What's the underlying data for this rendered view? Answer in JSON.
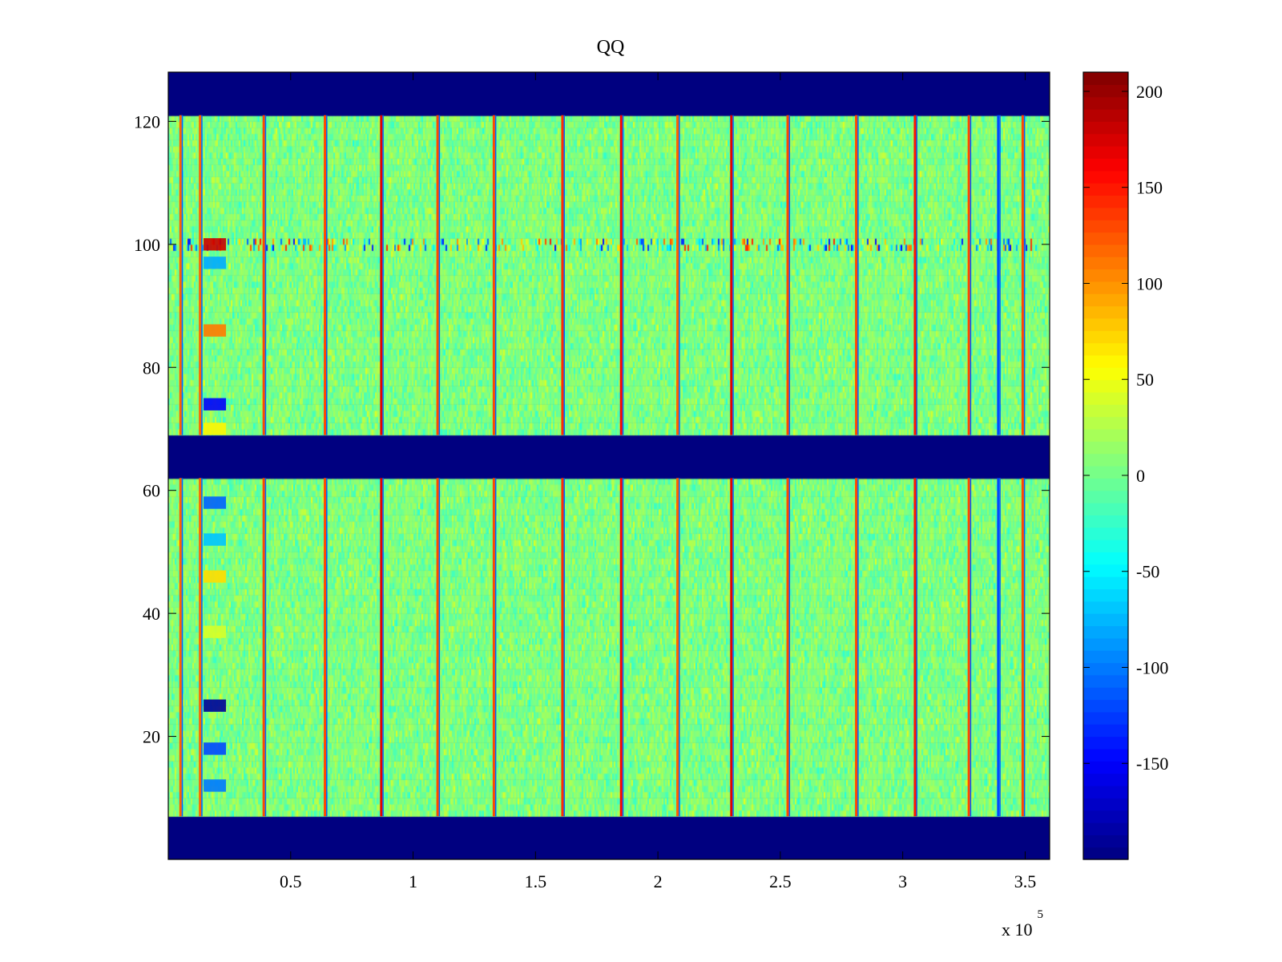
{
  "chart_data": {
    "type": "heatmap",
    "title": "QQ",
    "xlabel": "",
    "ylabel": "",
    "x_multiplier_label": {
      "base": "x 10",
      "exponent": "5"
    },
    "xlim": [
      0,
      360000
    ],
    "ylim": [
      0,
      128
    ],
    "x_ticks": [
      {
        "value": 50000,
        "label": "0.5"
      },
      {
        "value": 100000,
        "label": "1"
      },
      {
        "value": 150000,
        "label": "1.5"
      },
      {
        "value": 200000,
        "label": "2"
      },
      {
        "value": 250000,
        "label": "2.5"
      },
      {
        "value": 300000,
        "label": "3"
      },
      {
        "value": 350000,
        "label": "3.5"
      }
    ],
    "y_ticks": [
      {
        "value": 20,
        "label": "20"
      },
      {
        "value": 40,
        "label": "40"
      },
      {
        "value": 60,
        "label": "60"
      },
      {
        "value": 80,
        "label": "80"
      },
      {
        "value": 100,
        "label": "100"
      },
      {
        "value": 120,
        "label": "120"
      }
    ],
    "colorbar": {
      "colormap": "jet",
      "clim": [
        -200,
        210
      ],
      "ticks": [
        {
          "value": 200,
          "label": "200"
        },
        {
          "value": 150,
          "label": "150"
        },
        {
          "value": 100,
          "label": "100"
        },
        {
          "value": 50,
          "label": "50"
        },
        {
          "value": 0,
          "label": "0"
        },
        {
          "value": -50,
          "label": "-50"
        },
        {
          "value": -100,
          "label": "-100"
        },
        {
          "value": -150,
          "label": "-150"
        }
      ]
    },
    "background_value": 5,
    "noise_amplitude": 28,
    "masked_bands": [
      {
        "y_range": [
          0,
          7
        ],
        "value": -200
      },
      {
        "y_range": [
          62,
          69
        ],
        "value": -200
      },
      {
        "y_range": [
          121,
          128
        ],
        "value": -200
      }
    ],
    "vertical_stripes": [
      {
        "x": 5000,
        "value": 120
      },
      {
        "x": 13000,
        "value": 120
      },
      {
        "x": 39000,
        "value": 130
      },
      {
        "x": 64000,
        "value": 130
      },
      {
        "x": 87000,
        "value": 170
      },
      {
        "x": 110000,
        "value": 130
      },
      {
        "x": 133000,
        "value": 130
      },
      {
        "x": 161000,
        "value": 140
      },
      {
        "x": 185000,
        "value": 160
      },
      {
        "x": 208000,
        "value": 120
      },
      {
        "x": 230000,
        "value": 170
      },
      {
        "x": 253000,
        "value": 130
      },
      {
        "x": 281000,
        "value": 130
      },
      {
        "x": 305000,
        "value": 150
      },
      {
        "x": 327000,
        "value": 130
      },
      {
        "x": 339000,
        "value": -120
      },
      {
        "x": 349000,
        "value": 130
      }
    ],
    "horizontal_feature_row": {
      "y": 100,
      "value_range": [
        -150,
        150
      ]
    },
    "column_blobs": [
      {
        "x": 19000,
        "y": 100,
        "value": 180
      },
      {
        "x": 19000,
        "y": 97,
        "value": -80
      },
      {
        "x": 19000,
        "y": 86,
        "value": 110
      },
      {
        "x": 19000,
        "y": 74,
        "value": -150
      },
      {
        "x": 19000,
        "y": 70,
        "value": 60
      },
      {
        "x": 19000,
        "y": 58,
        "value": -110
      },
      {
        "x": 19000,
        "y": 52,
        "value": -70
      },
      {
        "x": 19000,
        "y": 46,
        "value": 70
      },
      {
        "x": 19000,
        "y": 37,
        "value": 40
      },
      {
        "x": 19000,
        "y": 25,
        "value": -190
      },
      {
        "x": 19000,
        "y": 18,
        "value": -120
      },
      {
        "x": 19000,
        "y": 12,
        "value": -100
      }
    ]
  }
}
